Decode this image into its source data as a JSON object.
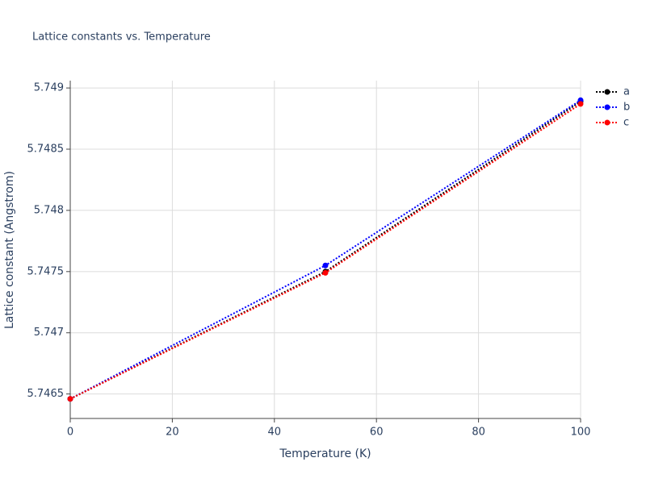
{
  "chart_data": {
    "type": "line",
    "title": "Lattice constants vs. Temperature",
    "x_label": "Temperature (K)",
    "y_label": "Lattice constant (Angstrom)",
    "x": [
      0,
      50,
      100
    ],
    "series": [
      {
        "name": "a",
        "color": "#000000",
        "values": [
          5.74646,
          5.7475,
          5.74889
        ]
      },
      {
        "name": "b",
        "color": "#0000ff",
        "values": [
          5.74646,
          5.74755,
          5.7489
        ]
      },
      {
        "name": "c",
        "color": "#ff0000",
        "values": [
          5.74646,
          5.74749,
          5.74887
        ]
      }
    ],
    "xlim": [
      0,
      100
    ],
    "xticks": [
      0,
      20,
      40,
      60,
      80,
      100
    ],
    "ylim": [
      5.7463,
      5.74906
    ],
    "yticks": [
      5.7465,
      5.747,
      5.7475,
      5.748,
      5.7485,
      5.749
    ],
    "grid": true,
    "legend": "right"
  }
}
